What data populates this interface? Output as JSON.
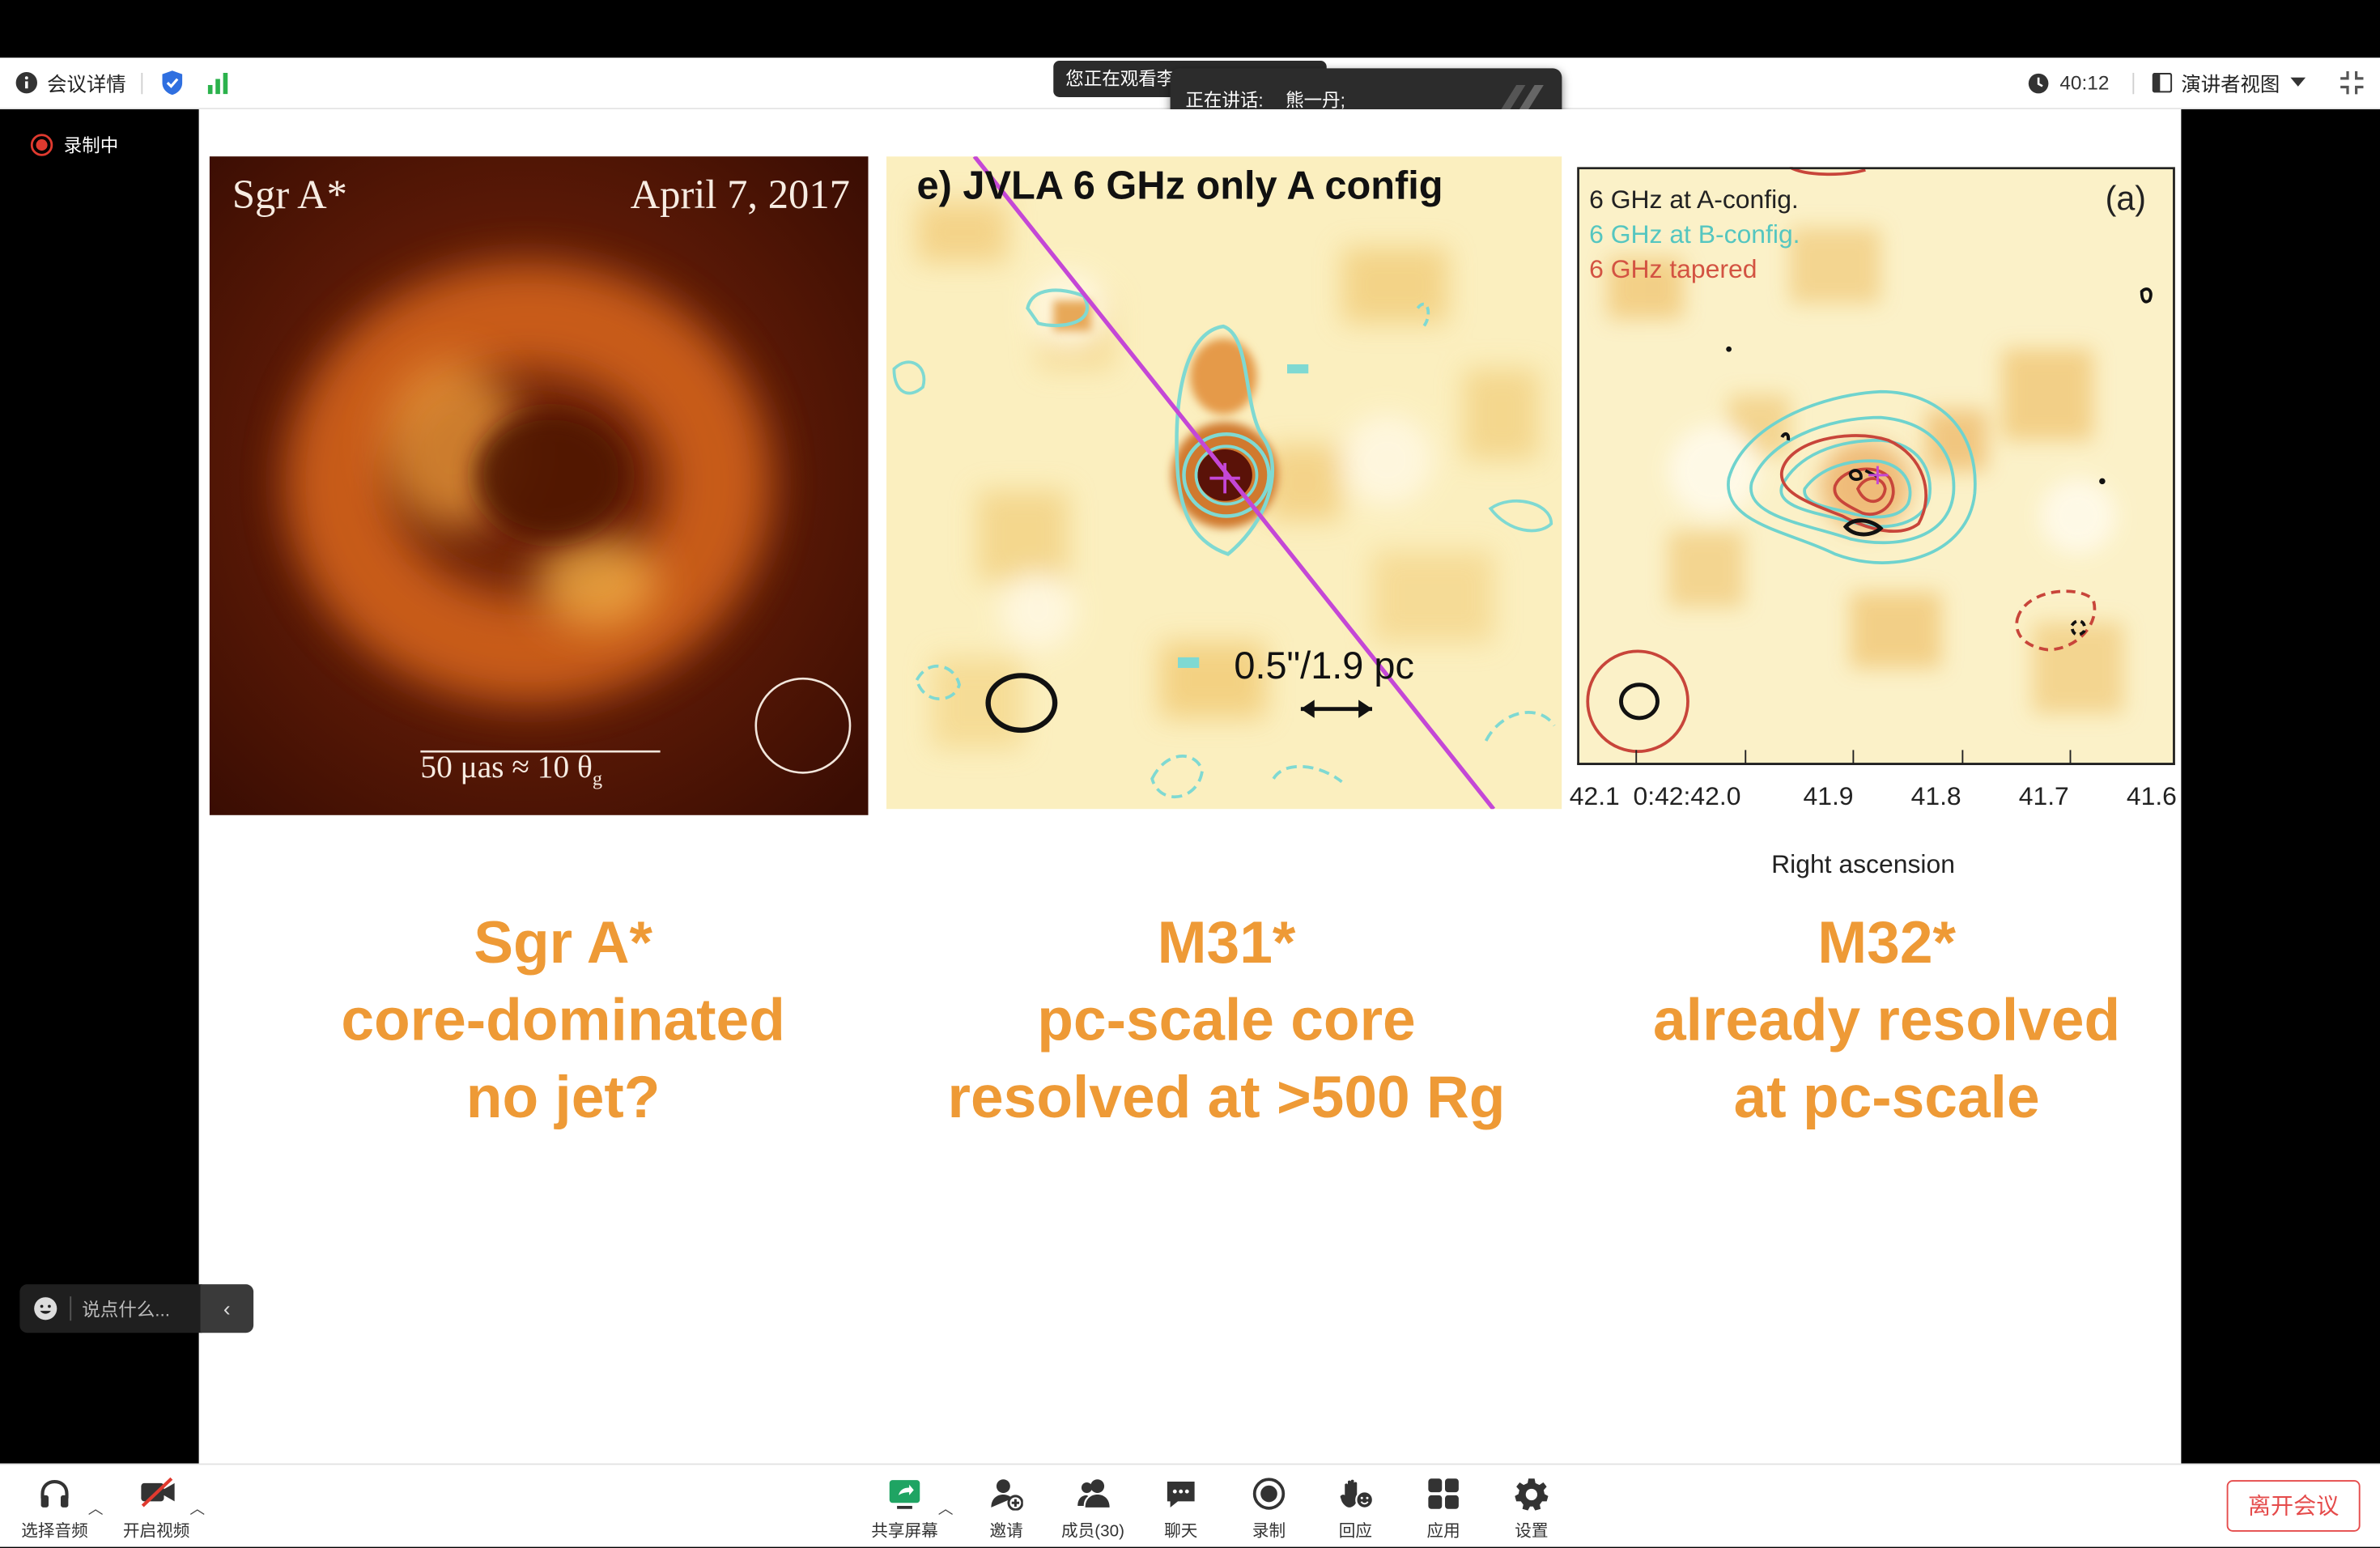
{
  "topbar": {
    "meeting_info": "会议详情",
    "timer": "40:12",
    "view_mode": "演讲者视图"
  },
  "banner": {
    "watching": "您正在观看李",
    "speaking_label": "正在讲话:",
    "speaker": "熊一丹;"
  },
  "recording_badge": "录制中",
  "chat": {
    "placeholder": "说点什么..."
  },
  "slide": {
    "panel1": {
      "title": "Sgr A*",
      "date": "April 7, 2017",
      "scale": "50 μas ≈ 10 θ",
      "scale_sub": "g"
    },
    "panel2": {
      "title": "e) JVLA 6 GHz only A config",
      "scale": "0.5\"/1.9 pc"
    },
    "panel3": {
      "label_a": "(a)",
      "legend": [
        "6 GHz at A-config.",
        "6 GHz at B-config.",
        "6 GHz  tapered"
      ],
      "ticks": [
        "42.1",
        "0:42:42.0",
        "41.9",
        "41.8",
        "41.7",
        "41.6"
      ],
      "xlabel": "Right ascension"
    },
    "captions": [
      {
        "line1": "Sgr A*",
        "line2": "core-dominated",
        "line3": "no jet?"
      },
      {
        "line1": "M31*",
        "line2": "pc-scale core",
        "line3": "resolved at >500 Rg"
      },
      {
        "line1": "M32*",
        "line2": "already resolved",
        "line3": "at pc-scale"
      }
    ]
  },
  "toolbar": {
    "audio": "选择音频",
    "video": "开启视频",
    "share": "共享屏幕",
    "invite": "邀请",
    "participants": "成员(30)",
    "chat": "聊天",
    "record": "录制",
    "reactions": "回应",
    "apps": "应用",
    "settings": "设置",
    "leave": "离开会议"
  },
  "colors": {
    "accent_orange": "#ee9a36",
    "leave_red": "#e54b4b",
    "shield_blue": "#2f6fe0",
    "signal_green": "#2bb24c",
    "record_red": "#e03a2f",
    "share_green": "#1fa463"
  }
}
